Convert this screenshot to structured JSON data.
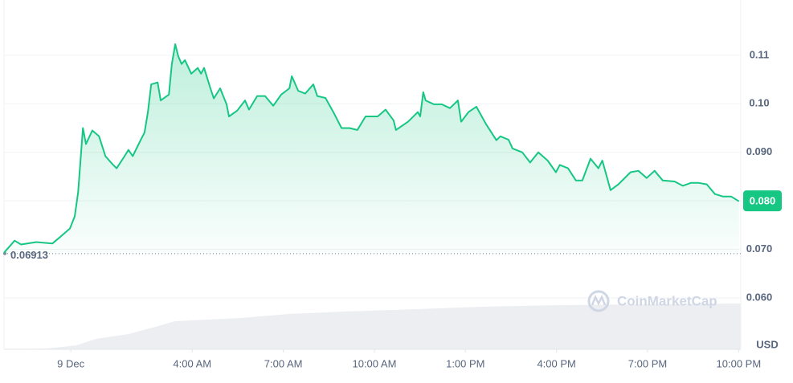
{
  "chart_data": {
    "type": "line",
    "x": [
      -2.2,
      -1.85,
      -1.64,
      -1.14,
      -0.61,
      -0.34,
      -0.03,
      0.13,
      0.24,
      0.32,
      0.4,
      0.5,
      0.71,
      0.93,
      1.14,
      1.38,
      1.51,
      1.77,
      1.9,
      2.04,
      2.3,
      2.43,
      2.54,
      2.65,
      2.86,
      2.96,
      3.23,
      3.33,
      3.44,
      3.54,
      3.65,
      3.76,
      3.97,
      4.18,
      4.29,
      4.39,
      4.6,
      4.71,
      4.92,
      5.13,
      5.21,
      5.48,
      5.74,
      5.87,
      6.14,
      6.4,
      6.67,
      6.93,
      7.2,
      7.28,
      7.49,
      7.72,
      7.99,
      8.12,
      8.39,
      8.65,
      8.92,
      9.18,
      9.44,
      9.71,
      10.11,
      10.37,
      10.63,
      10.71,
      11.11,
      11.43,
      11.51,
      11.61,
      11.69,
      11.96,
      12.22,
      12.49,
      12.75,
      12.86,
      13.1,
      13.36,
      13.68,
      14.02,
      14.15,
      14.42,
      14.55,
      14.87,
      15.13,
      15.4,
      15.71,
      15.98,
      16.11,
      16.38,
      16.64,
      16.85,
      17.12,
      17.38,
      17.51,
      17.78,
      18.04,
      18.44,
      18.7,
      18.97,
      19.23,
      19.5,
      19.89,
      20.16,
      20.42,
      20.69,
      20.95,
      21.22,
      21.48,
      21.75,
      22.01
    ],
    "series": [
      {
        "color": "#16c784",
        "values": [
          0.0693,
          0.0718,
          0.071,
          0.0715,
          0.0712,
          0.0726,
          0.0743,
          0.0768,
          0.0817,
          0.0883,
          0.095,
          0.0917,
          0.0945,
          0.0933,
          0.0892,
          0.0875,
          0.0867,
          0.0892,
          0.0905,
          0.0892,
          0.0925,
          0.0941,
          0.0983,
          0.104,
          0.1044,
          0.1007,
          0.1019,
          0.1082,
          0.1123,
          0.1098,
          0.1082,
          0.109,
          0.1062,
          0.1074,
          0.1062,
          0.1074,
          0.1032,
          0.1011,
          0.1032,
          0.0999,
          0.0974,
          0.0986,
          0.1007,
          0.0988,
          0.1016,
          0.1016,
          0.0996,
          0.1019,
          0.1032,
          0.1057,
          0.1027,
          0.1021,
          0.104,
          0.1016,
          0.1012,
          0.0983,
          0.095,
          0.095,
          0.0946,
          0.0974,
          0.0974,
          0.0988,
          0.0966,
          0.0946,
          0.0963,
          0.0983,
          0.0974,
          0.1024,
          0.1007,
          0.0999,
          0.0999,
          0.0991,
          0.1007,
          0.0963,
          0.0983,
          0.0994,
          0.0958,
          0.0925,
          0.0933,
          0.0926,
          0.0908,
          0.09,
          0.0879,
          0.09,
          0.0883,
          0.0859,
          0.0874,
          0.0867,
          0.0842,
          0.0842,
          0.0887,
          0.0867,
          0.0883,
          0.0822,
          0.0834,
          0.0859,
          0.0862,
          0.0847,
          0.0862,
          0.0842,
          0.084,
          0.0831,
          0.0837,
          0.0837,
          0.0834,
          0.0814,
          0.0809,
          0.0809,
          0.0799
        ]
      }
    ],
    "xlim": [
      -2.2,
      22.07
    ],
    "xticks": [
      {
        "value": 0,
        "label": "9 Dec"
      },
      {
        "value": 4,
        "label": "4:00 AM"
      },
      {
        "value": 7,
        "label": "7:00 AM"
      },
      {
        "value": 10,
        "label": "10:00 AM"
      },
      {
        "value": 13,
        "label": "1:00 PM"
      },
      {
        "value": 16,
        "label": "4:00 PM"
      },
      {
        "value": 19,
        "label": "7:00 PM"
      },
      {
        "value": 22,
        "label": "10:00 PM"
      }
    ],
    "ylim": [
      0.0494,
      0.1214
    ],
    "yticks": [
      {
        "value": 0.06,
        "label": "0.060"
      },
      {
        "value": 0.07,
        "label": "0.070"
      },
      {
        "value": 0.08,
        "label": "0.080"
      },
      {
        "value": 0.09,
        "label": "0.090"
      },
      {
        "value": 0.1,
        "label": "0.10"
      },
      0.11
    ],
    "y_axis_label": "USD",
    "grid": true,
    "reference_line": 0.06913,
    "current_price": {
      "value": 0.08,
      "label": "0.080"
    },
    "watermark": "CoinMarketCap"
  }
}
